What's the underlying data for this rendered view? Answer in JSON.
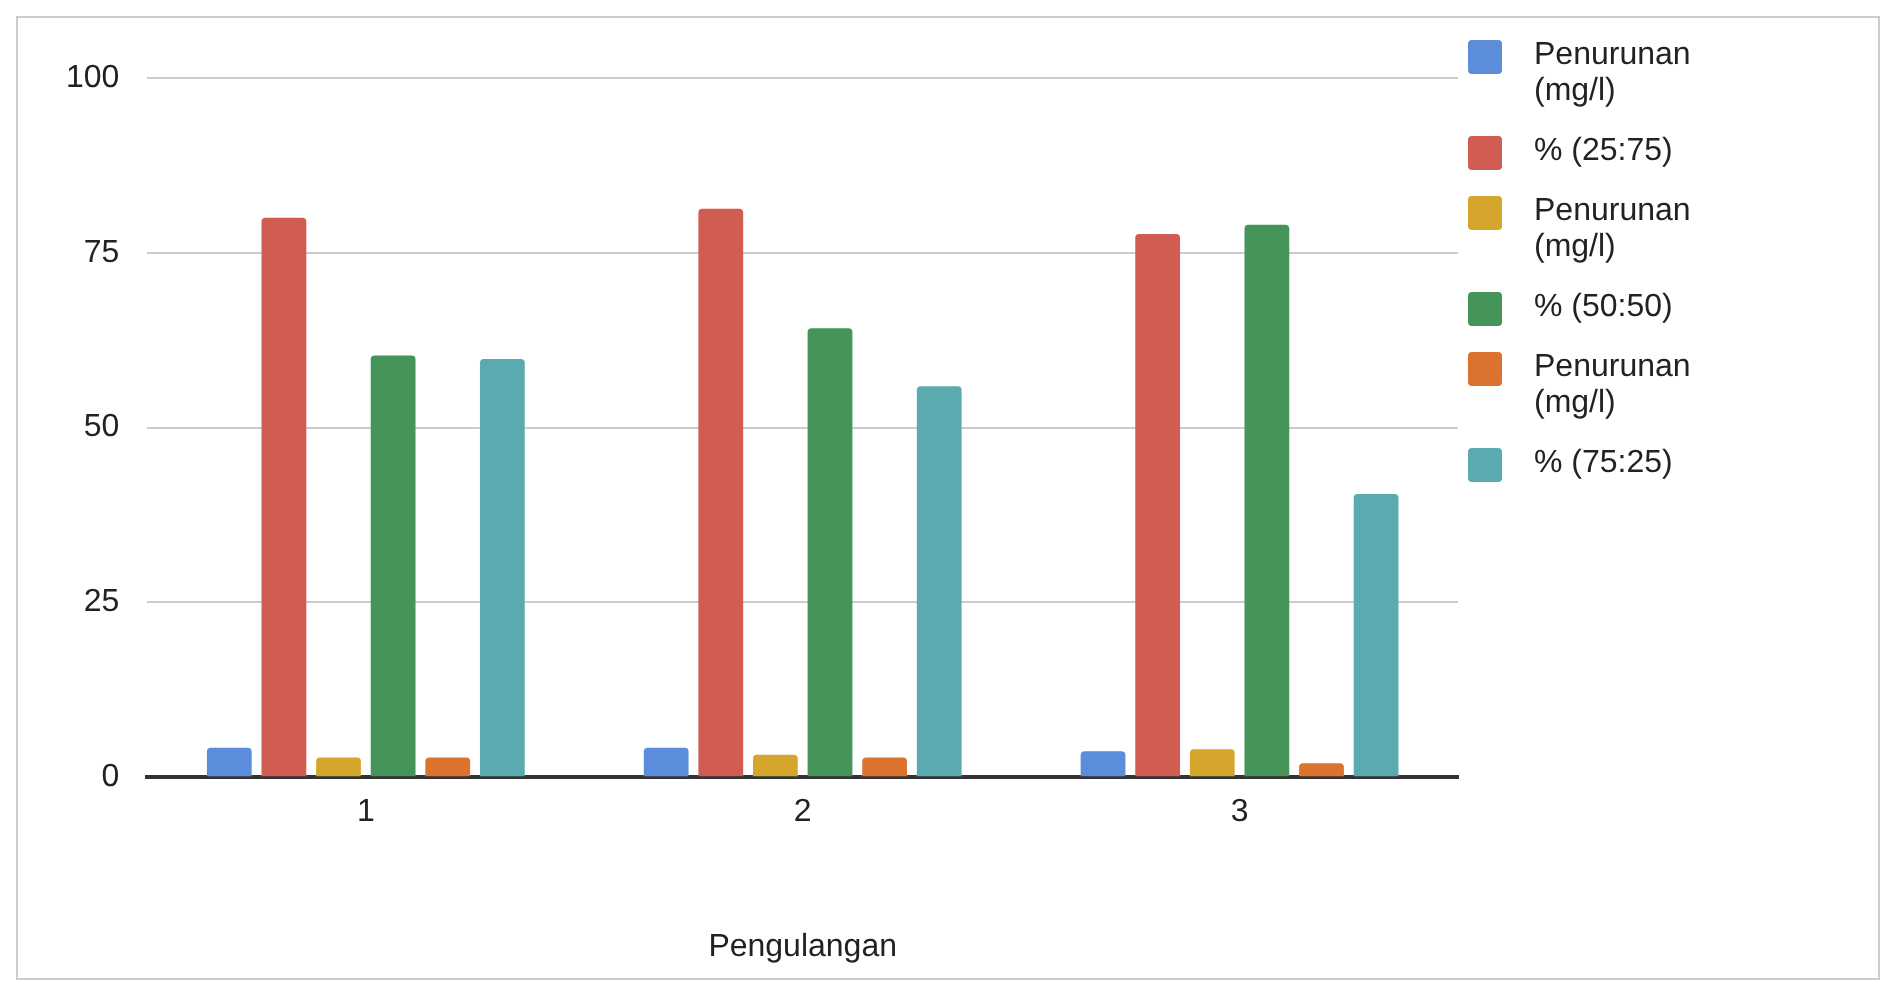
{
  "chart_data": {
    "type": "bar",
    "xlabel": "Pengulangan",
    "categories": [
      "1",
      "2",
      "3"
    ],
    "series": [
      {
        "name": "Penurunan (mg/l)",
        "color": "#5b8ddb",
        "values": [
          4.2,
          4.2,
          3.7
        ]
      },
      {
        "name": "% (25:75)",
        "color": "#d05c52",
        "values": [
          80,
          81.3,
          77.7
        ]
      },
      {
        "name": "Penurunan (mg/l)",
        "color": "#d4a72c",
        "values": [
          2.8,
          3.2,
          4
        ]
      },
      {
        "name": "% (50:50)",
        "color": "#45955a",
        "values": [
          60.3,
          64.2,
          79
        ]
      },
      {
        "name": "Penurunan (mg/l)",
        "color": "#db722d",
        "values": [
          2.8,
          2.8,
          2
        ]
      },
      {
        "name": "% (75:25)",
        "color": "#5aabb0",
        "values": [
          59.8,
          55.9,
          40.5
        ]
      }
    ],
    "ylim": [
      0,
      100
    ],
    "yticks": [
      0,
      25,
      50,
      75,
      100
    ],
    "grid": "y",
    "legend": "right"
  }
}
